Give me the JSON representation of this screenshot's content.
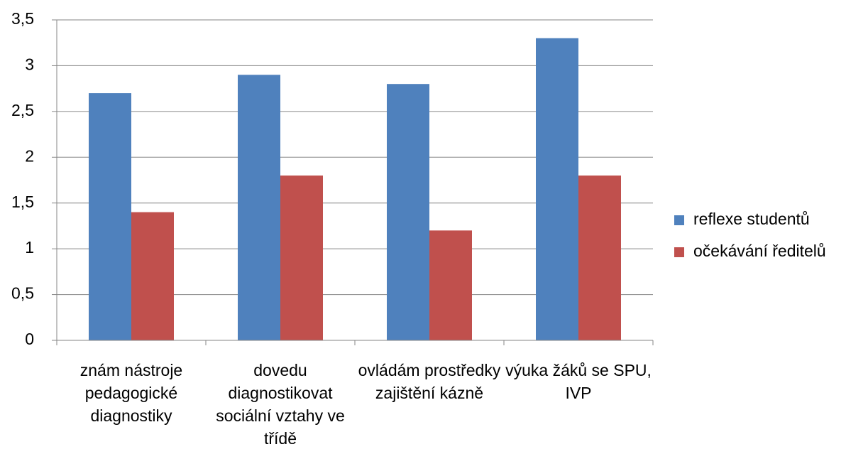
{
  "chart_data": {
    "type": "bar",
    "categories": [
      "znám nástroje pedagogické diagnostiky",
      "dovedu diagnostikovat sociální vztahy ve třídě",
      "ovládám prostředky zajištění kázně",
      "výuka žáků se SPU, IVP"
    ],
    "series": [
      {
        "name": "reflexe studentů",
        "color": "#4f81bd",
        "values": [
          2.7,
          2.9,
          2.8,
          3.3
        ]
      },
      {
        "name": "očekávání ředitelů",
        "color": "#c0504d",
        "values": [
          1.4,
          1.8,
          1.2,
          1.8
        ]
      }
    ],
    "ylim": [
      0,
      3.5
    ],
    "yticks": [
      0,
      {
        "value": 0.5,
        "label": "0,5"
      },
      1,
      {
        "value": 1.5,
        "label": "1,5"
      },
      2,
      {
        "value": 2.5,
        "label": "2,5"
      },
      3,
      {
        "value": 3.5,
        "label": "3,5"
      }
    ],
    "grid": true,
    "legend": "right"
  }
}
